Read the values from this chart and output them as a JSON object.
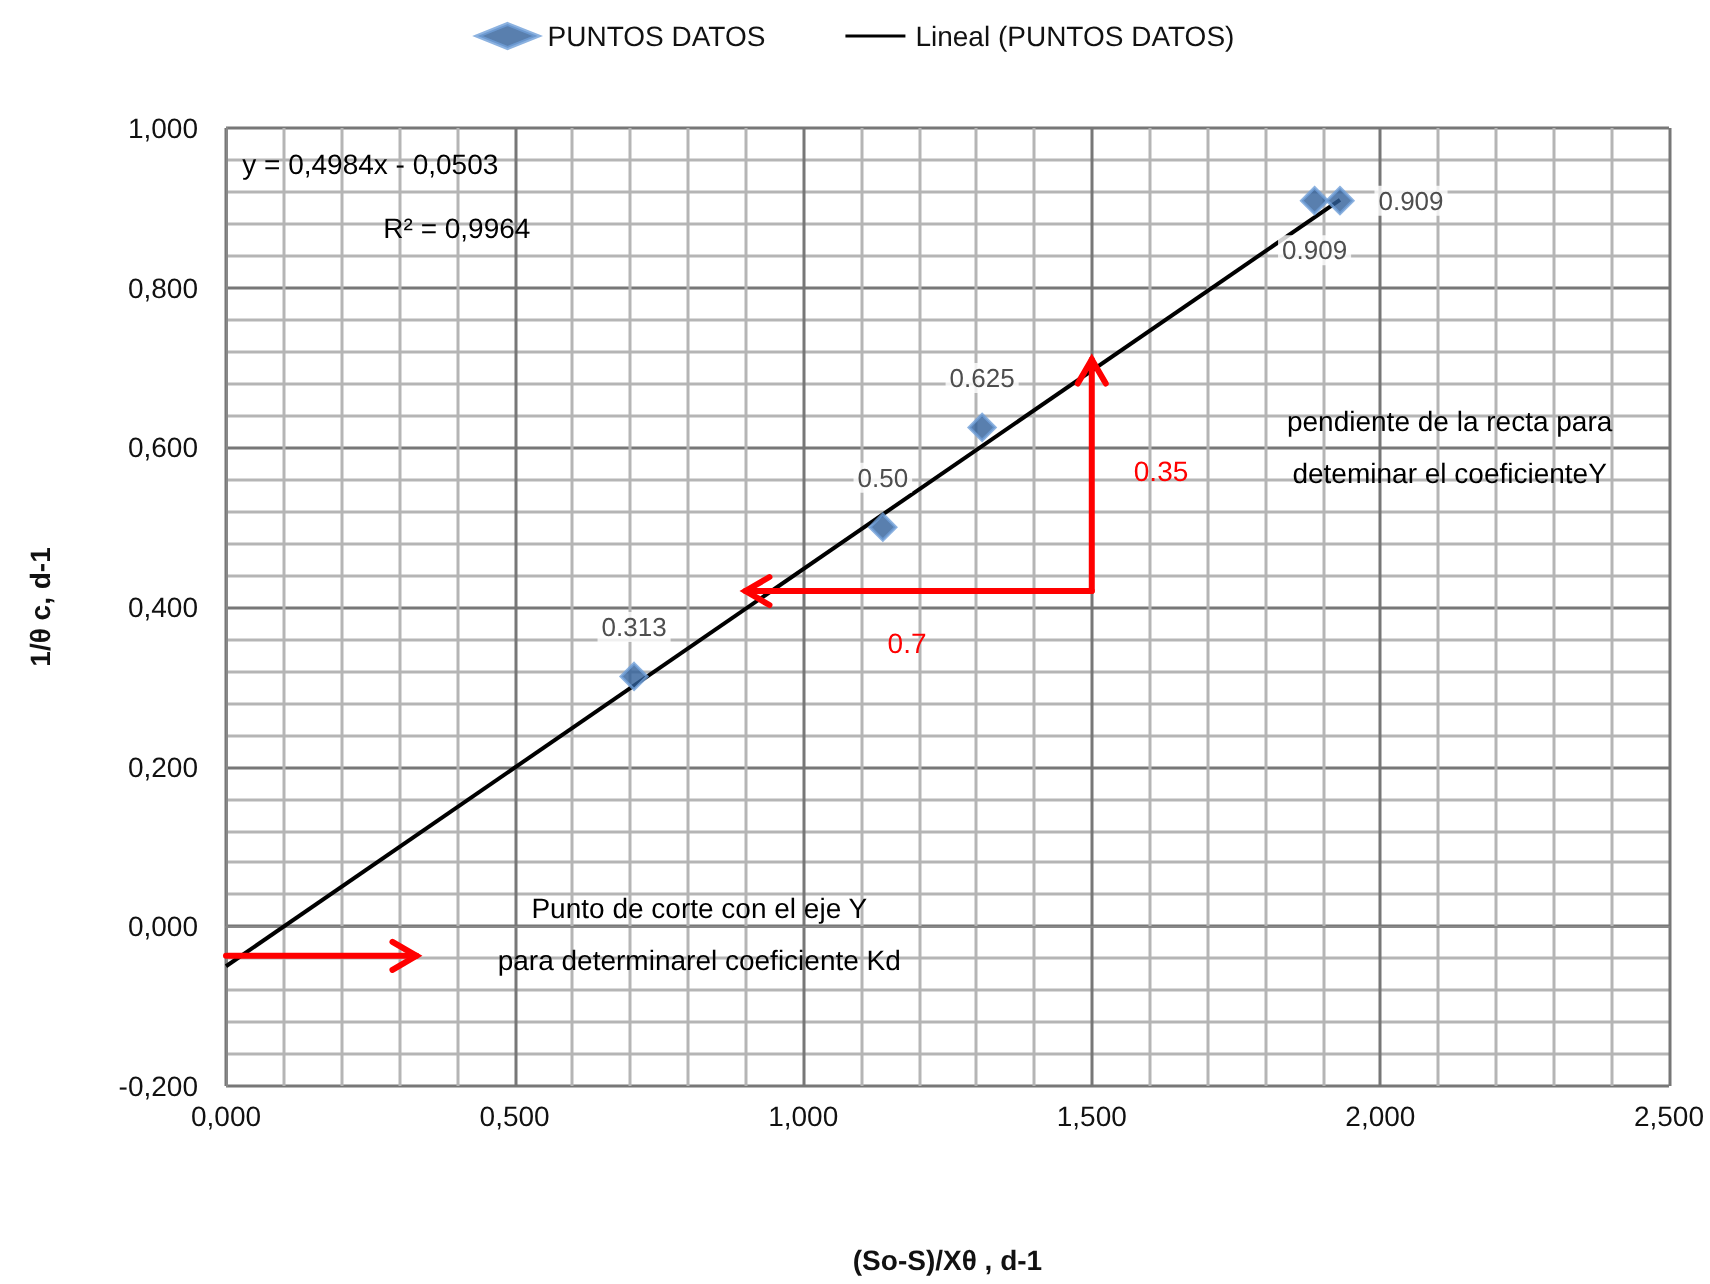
{
  "chart_data": {
    "type": "scatter",
    "xlabel": "(So-S)/Xθ , d-1",
    "ylabel": "1/θ c, d-1",
    "xlim": [
      0,
      2.5
    ],
    "ylim": [
      -0.2,
      1.0
    ],
    "xticks": [
      {
        "value": 0,
        "label": "0,000"
      },
      {
        "value": 0.5,
        "label": "0,500"
      },
      {
        "value": 1,
        "label": "1,000"
      },
      {
        "value": 1.5,
        "label": "1,500"
      },
      {
        "value": 2,
        "label": "2,000"
      },
      {
        "value": 2.5,
        "label": "2,500"
      }
    ],
    "yticks": [
      {
        "value": -0.2,
        "label": "-0,200"
      },
      {
        "value": 0,
        "label": "0,000"
      },
      {
        "value": 0.2,
        "label": "0,200"
      },
      {
        "value": 0.4,
        "label": "0,400"
      },
      {
        "value": 0.6,
        "label": "0,600"
      },
      {
        "value": 0.8,
        "label": "0,800"
      },
      {
        "value": 1,
        "label": "1,000"
      }
    ],
    "grid": true,
    "legend": "top",
    "series": [
      {
        "name": "PUNTOS DATOS",
        "marker": "diamond",
        "color": "#2f5f9a",
        "x": [
          0.707,
          1.138,
          1.31,
          1.886,
          1.93
        ],
        "values": [
          0.313,
          0.5,
          0.625,
          0.909,
          0.909
        ],
        "value_labels": [
          "0.313",
          "0.50",
          "0.625",
          "0.909",
          "0.909"
        ]
      },
      {
        "name": "Lineal (PUNTOS DATOS)",
        "type": "line",
        "marker": "none",
        "color": "#000000",
        "x": [
          0,
          1.93
        ],
        "values": [
          -0.05,
          0.91
        ]
      }
    ],
    "annotations": [
      "y = 0,4984x - 0,0503",
      "R² = 0,9964",
      "0.35",
      "0.7",
      "pendiente de la recta para\ndeteminar el coeficienteY",
      "Punto de corte con el eje Y\npara determinarel coeficiente Kd"
    ]
  }
}
